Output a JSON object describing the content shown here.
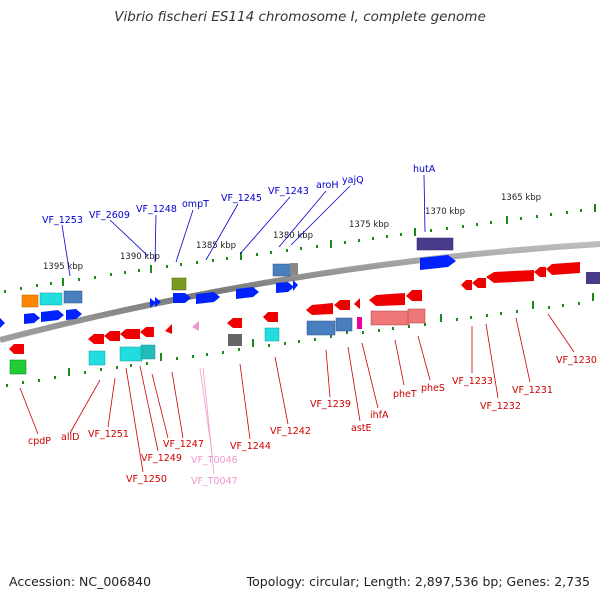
{
  "title": "Vibrio fischeri ES114 chromosome I, complete genome",
  "footer": {
    "accession": "Accession: NC_006840",
    "topology": "Topology: circular; Length: 2,897,536 bp; Genes: 2,735"
  },
  "colors": {
    "backbone": "#8a8a8a",
    "ticks": "#1a8a1a",
    "label_top": "#0000cc",
    "label_bottom": "#cc0000",
    "label_pseudo": "#ee99cc"
  },
  "ticks": [
    "1395 kbp",
    "1390 kbp",
    "1385 kbp",
    "1380 kbp",
    "1375 kbp",
    "1370 kbp",
    "1365 kbp"
  ],
  "top_labels": [
    "VF_1253",
    "VF_2609",
    "VF_1248",
    "ompT",
    "VF_1245",
    "VF_1243",
    "aroH",
    "yajQ",
    "hutA"
  ],
  "bottom_labels": [
    "cpdP",
    "allD",
    "VF_1251",
    "VF_1250",
    "VF_1249",
    "VF_1247",
    "VF_T0046",
    "VF_T0047",
    "VF_1244",
    "VF_1242",
    "VF_1239",
    "astE",
    "ihfA",
    "pheT",
    "pheS",
    "VF_1233",
    "VF_1232",
    "VF_1231",
    "VF_1230"
  ]
}
